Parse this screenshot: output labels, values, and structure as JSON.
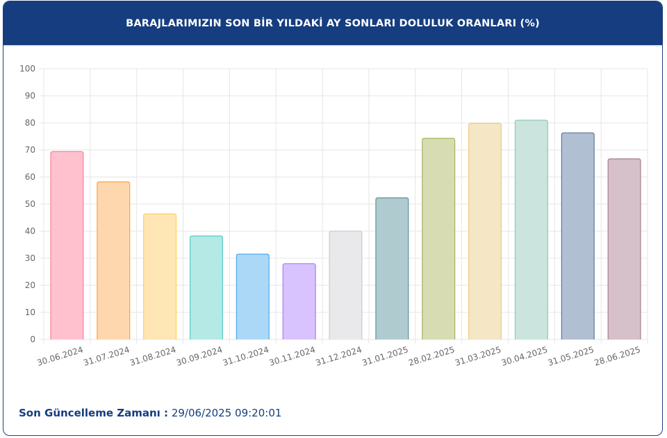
{
  "header": {
    "title": "BARAJLARIMIZIN SON BİR YILDAKİ AY SONLARI DOLULUK ORANLARI (%)"
  },
  "footer": {
    "label": "Son Güncelleme Zamanı :",
    "value": "29/06/2025 09:20:01"
  },
  "chart_data": {
    "type": "bar",
    "title": "BARAJLARIMIZIN SON BİR YILDAKİ AY SONLARI DOLULUK ORANLARI (%)",
    "xlabel": "",
    "ylabel": "",
    "ylim": [
      0,
      100
    ],
    "yticks": [
      0,
      10,
      20,
      30,
      40,
      50,
      60,
      70,
      80,
      90,
      100
    ],
    "grid": true,
    "legend": "none",
    "categories": [
      "30.06.2024",
      "31.07.2024",
      "31.08.2024",
      "30.09.2024",
      "31.10.2024",
      "30.11.2024",
      "31.12.2024",
      "31.01.2025",
      "28.02.2025",
      "31.03.2025",
      "30.04.2025",
      "31.05.2025",
      "28.06.2025"
    ],
    "values": [
      69.4,
      58.2,
      46.4,
      38.2,
      31.5,
      28.0,
      40.0,
      52.3,
      74.3,
      79.8,
      81.0,
      76.3,
      66.7
    ],
    "colors": {
      "fill": [
        "#ffc1ce",
        "#ffd7af",
        "#ffe6b5",
        "#b4e9e5",
        "#acd8f7",
        "#d8c3fe",
        "#e9e9ec",
        "#afcbcf",
        "#d7dcb2",
        "#f5e7c5",
        "#cbe4de",
        "#b1bfd3",
        "#d6c0c9"
      ],
      "stroke": [
        "#ff7d98",
        "#ffa043",
        "#ffcc55",
        "#56ccc1",
        "#4ba9ea",
        "#a57bf9",
        "#cbcbd0",
        "#5e9299",
        "#a8b25c",
        "#eccd7c",
        "#8ec8b8",
        "#5b7499",
        "#a47f8f"
      ],
      "grid": "#e6e6e6",
      "tick_text": "#666666"
    }
  }
}
